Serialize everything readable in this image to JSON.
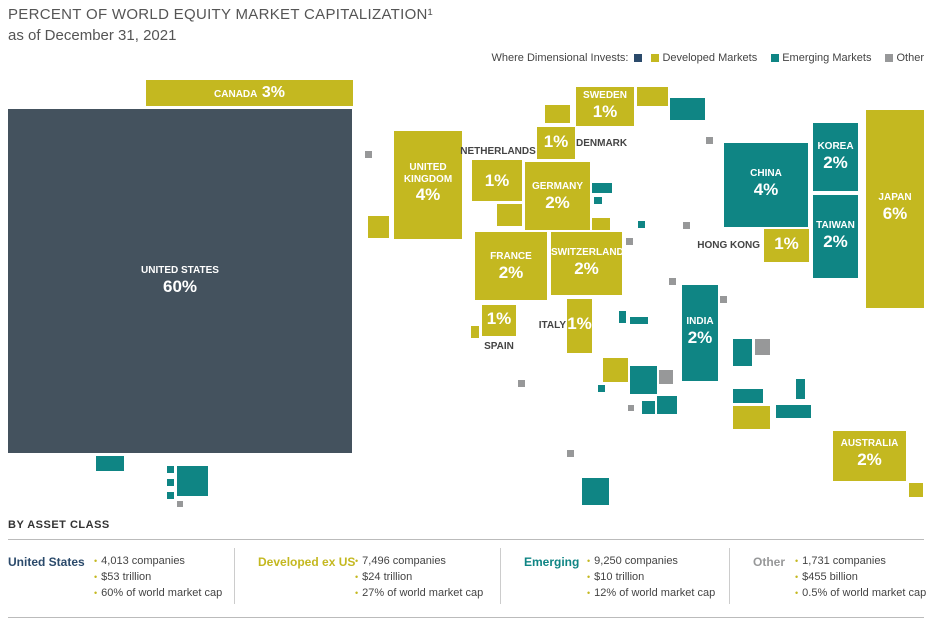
{
  "header": {
    "title": "PERCENT OF WORLD EQUITY MARKET CAPITALIZATION¹",
    "subtitle": "as of December 31, 2021"
  },
  "legend": {
    "prefix": "Where Dimensional Invests:",
    "items": [
      {
        "label": "Developed Markets",
        "color": "#c4b820"
      },
      {
        "label": "Emerging Markets",
        "color": "#0f8584"
      },
      {
        "label": "Other",
        "color": "#979899"
      }
    ],
    "us_color": "#2b4a6b"
  },
  "chart_data": {
    "type": "treemap-cartogram",
    "title": "PERCENT OF WORLD EQUITY MARKET CAPITALIZATION¹",
    "subtitle": "as of December 31, 2021",
    "countries": [
      {
        "name": "UNITED STATES",
        "value": "60%",
        "group": "United States"
      },
      {
        "name": "CANADA",
        "value": "3%",
        "group": "Developed Markets"
      },
      {
        "name": "UNITED KINGDOM",
        "value": "4%",
        "group": "Developed Markets"
      },
      {
        "name": "NETHERLANDS",
        "value": "1%",
        "group": "Developed Markets"
      },
      {
        "name": "SWEDEN",
        "value": "1%",
        "group": "Developed Markets"
      },
      {
        "name": "DENMARK",
        "value": "1%",
        "group": "Developed Markets"
      },
      {
        "name": "GERMANY",
        "value": "2%",
        "group": "Developed Markets"
      },
      {
        "name": "FRANCE",
        "value": "2%",
        "group": "Developed Markets"
      },
      {
        "name": "SWITZERLAND",
        "value": "2%",
        "group": "Developed Markets"
      },
      {
        "name": "SPAIN",
        "value": "1%",
        "group": "Developed Markets"
      },
      {
        "name": "ITALY",
        "value": "1%",
        "group": "Developed Markets"
      },
      {
        "name": "CHINA",
        "value": "4%",
        "group": "Emerging Markets"
      },
      {
        "name": "KOREA",
        "value": "2%",
        "group": "Emerging Markets"
      },
      {
        "name": "TAIWAN",
        "value": "2%",
        "group": "Emerging Markets"
      },
      {
        "name": "HONG KONG",
        "value": "1%",
        "group": "Developed Markets"
      },
      {
        "name": "JAPAN",
        "value": "6%",
        "group": "Developed Markets"
      },
      {
        "name": "INDIA",
        "value": "2%",
        "group": "Emerging Markets"
      },
      {
        "name": "AUSTRALIA",
        "value": "2%",
        "group": "Developed Markets"
      }
    ]
  },
  "asset_class": {
    "heading": "BY ASSET CLASS",
    "classes": [
      {
        "name": "United States",
        "color": "#2b4a6b",
        "facts": [
          "4,013 companies",
          "$53 trillion",
          "60% of world market cap"
        ]
      },
      {
        "name": "Developed ex US",
        "color": "#c4b820",
        "facts": [
          "7,496 companies",
          "$24 trillion",
          "27% of world market cap"
        ]
      },
      {
        "name": "Emerging",
        "color": "#0f8584",
        "facts": [
          "9,250 companies",
          "$10 trillion",
          "12% of world market cap"
        ]
      },
      {
        "name": "Other",
        "color": "#979899",
        "facts": [
          "1,731 companies",
          "$455 billion",
          "0.5% of world market cap"
        ]
      }
    ]
  }
}
